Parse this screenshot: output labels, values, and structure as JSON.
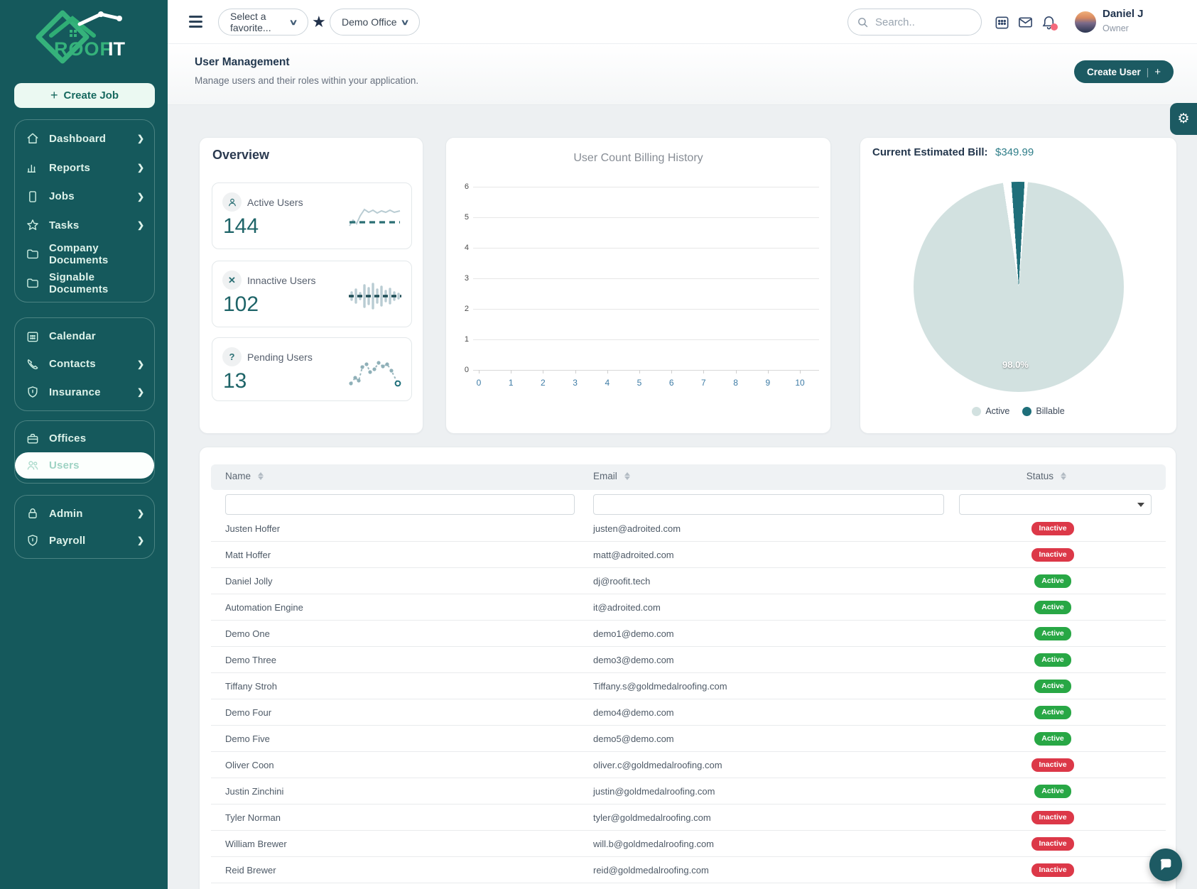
{
  "brand": {
    "name_part1": "ROOF",
    "name_part2": "IT"
  },
  "sidebar": {
    "create_job_label": "Create Job",
    "groups": [
      {
        "items": [
          {
            "label": "Dashboard",
            "icon": "home",
            "chevron": true
          },
          {
            "label": "Reports",
            "icon": "bar-chart",
            "chevron": true
          },
          {
            "label": "Jobs",
            "icon": "document",
            "chevron": true
          },
          {
            "label": "Tasks",
            "icon": "star",
            "chevron": true
          },
          {
            "label": "Company Documents",
            "icon": "folder",
            "chevron": false
          },
          {
            "label": "Signable Documents",
            "icon": "folder",
            "chevron": false
          }
        ]
      },
      {
        "items": [
          {
            "label": "Calendar",
            "icon": "calendar",
            "chevron": false
          },
          {
            "label": "Contacts",
            "icon": "phone",
            "chevron": true
          },
          {
            "label": "Insurance",
            "icon": "shield",
            "chevron": true
          }
        ]
      },
      {
        "items": [
          {
            "label": "Offices",
            "icon": "briefcase",
            "chevron": false
          },
          {
            "label": "Users",
            "icon": "users",
            "chevron": false,
            "active": true
          }
        ]
      },
      {
        "items": [
          {
            "label": "Admin",
            "icon": "lock",
            "chevron": true
          },
          {
            "label": "Payroll",
            "icon": "shield",
            "chevron": true
          }
        ]
      }
    ]
  },
  "topbar": {
    "favorite_placeholder": "Select a favorite...",
    "office_value": "Demo Office",
    "search_placeholder": "Search..",
    "user_name": "Daniel J",
    "user_role": "Owner"
  },
  "header": {
    "title": "User Management",
    "subtitle": "Manage users and their roles within your application.",
    "create_user_label": "Create User",
    "create_user_plus": "+"
  },
  "overview": {
    "title": "Overview",
    "stats": [
      {
        "label": "Active Users",
        "value": "144",
        "icon": "person"
      },
      {
        "label": "Innactive Users",
        "value": "102",
        "icon": "x"
      },
      {
        "label": "Pending Users",
        "value": "13",
        "icon": "question"
      }
    ]
  },
  "chart_data": [
    {
      "type": "line",
      "title": "User Count Billing History",
      "series": [],
      "x_ticks": [
        0,
        1,
        2,
        3,
        4,
        5,
        6,
        7,
        8,
        9,
        10
      ],
      "y_ticks": [
        0,
        1,
        2,
        3,
        4,
        5,
        6
      ],
      "xlim": [
        0,
        10
      ],
      "ylim": [
        0,
        6
      ],
      "grid": true,
      "legend": "none"
    },
    {
      "type": "pie",
      "title": "Current Estimated Bill:",
      "amount": "$349.99",
      "labels": [
        "Active",
        "Billable"
      ],
      "values": [
        98.0,
        2.0
      ],
      "slice_label": "98.0%",
      "colors": [
        "#d2e1e0",
        "#1f6f7a"
      ],
      "legend_position": "bottom"
    }
  ],
  "colors": {
    "accent_teal": "#1c5a62",
    "sidebar_bg": "#15595c",
    "badge_active": "#28a745",
    "badge_inactive": "#dc3848"
  },
  "table": {
    "columns": [
      "Name",
      "Email",
      "Status"
    ],
    "status_filter_value": "",
    "rows": [
      {
        "name": "Justen Hoffer",
        "email": "justen@adroited.com",
        "status": "Inactive"
      },
      {
        "name": "Matt Hoffer",
        "email": "matt@adroited.com",
        "status": "Inactive"
      },
      {
        "name": "Daniel Jolly",
        "email": "dj@roofit.tech",
        "status": "Active"
      },
      {
        "name": "Automation Engine",
        "email": "it@adroited.com",
        "status": "Active"
      },
      {
        "name": "Demo One",
        "email": "demo1@demo.com",
        "status": "Active"
      },
      {
        "name": "Demo Three",
        "email": "demo3@demo.com",
        "status": "Active"
      },
      {
        "name": "Tiffany Stroh",
        "email": "Tiffany.s@goldmedalroofing.com",
        "status": "Active"
      },
      {
        "name": "Demo Four",
        "email": "demo4@demo.com",
        "status": "Active"
      },
      {
        "name": "Demo Five",
        "email": "demo5@demo.com",
        "status": "Active"
      },
      {
        "name": "Oliver Coon",
        "email": "oliver.c@goldmedalroofing.com",
        "status": "Inactive"
      },
      {
        "name": "Justin Zinchini",
        "email": "justin@goldmedalroofing.com",
        "status": "Active"
      },
      {
        "name": "Tyler Norman",
        "email": "tyler@goldmedalroofing.com",
        "status": "Inactive"
      },
      {
        "name": "William Brewer",
        "email": "will.b@goldmedalroofing.com",
        "status": "Inactive"
      },
      {
        "name": "Reid Brewer",
        "email": "reid@goldmedalroofing.com",
        "status": "Inactive"
      }
    ]
  }
}
